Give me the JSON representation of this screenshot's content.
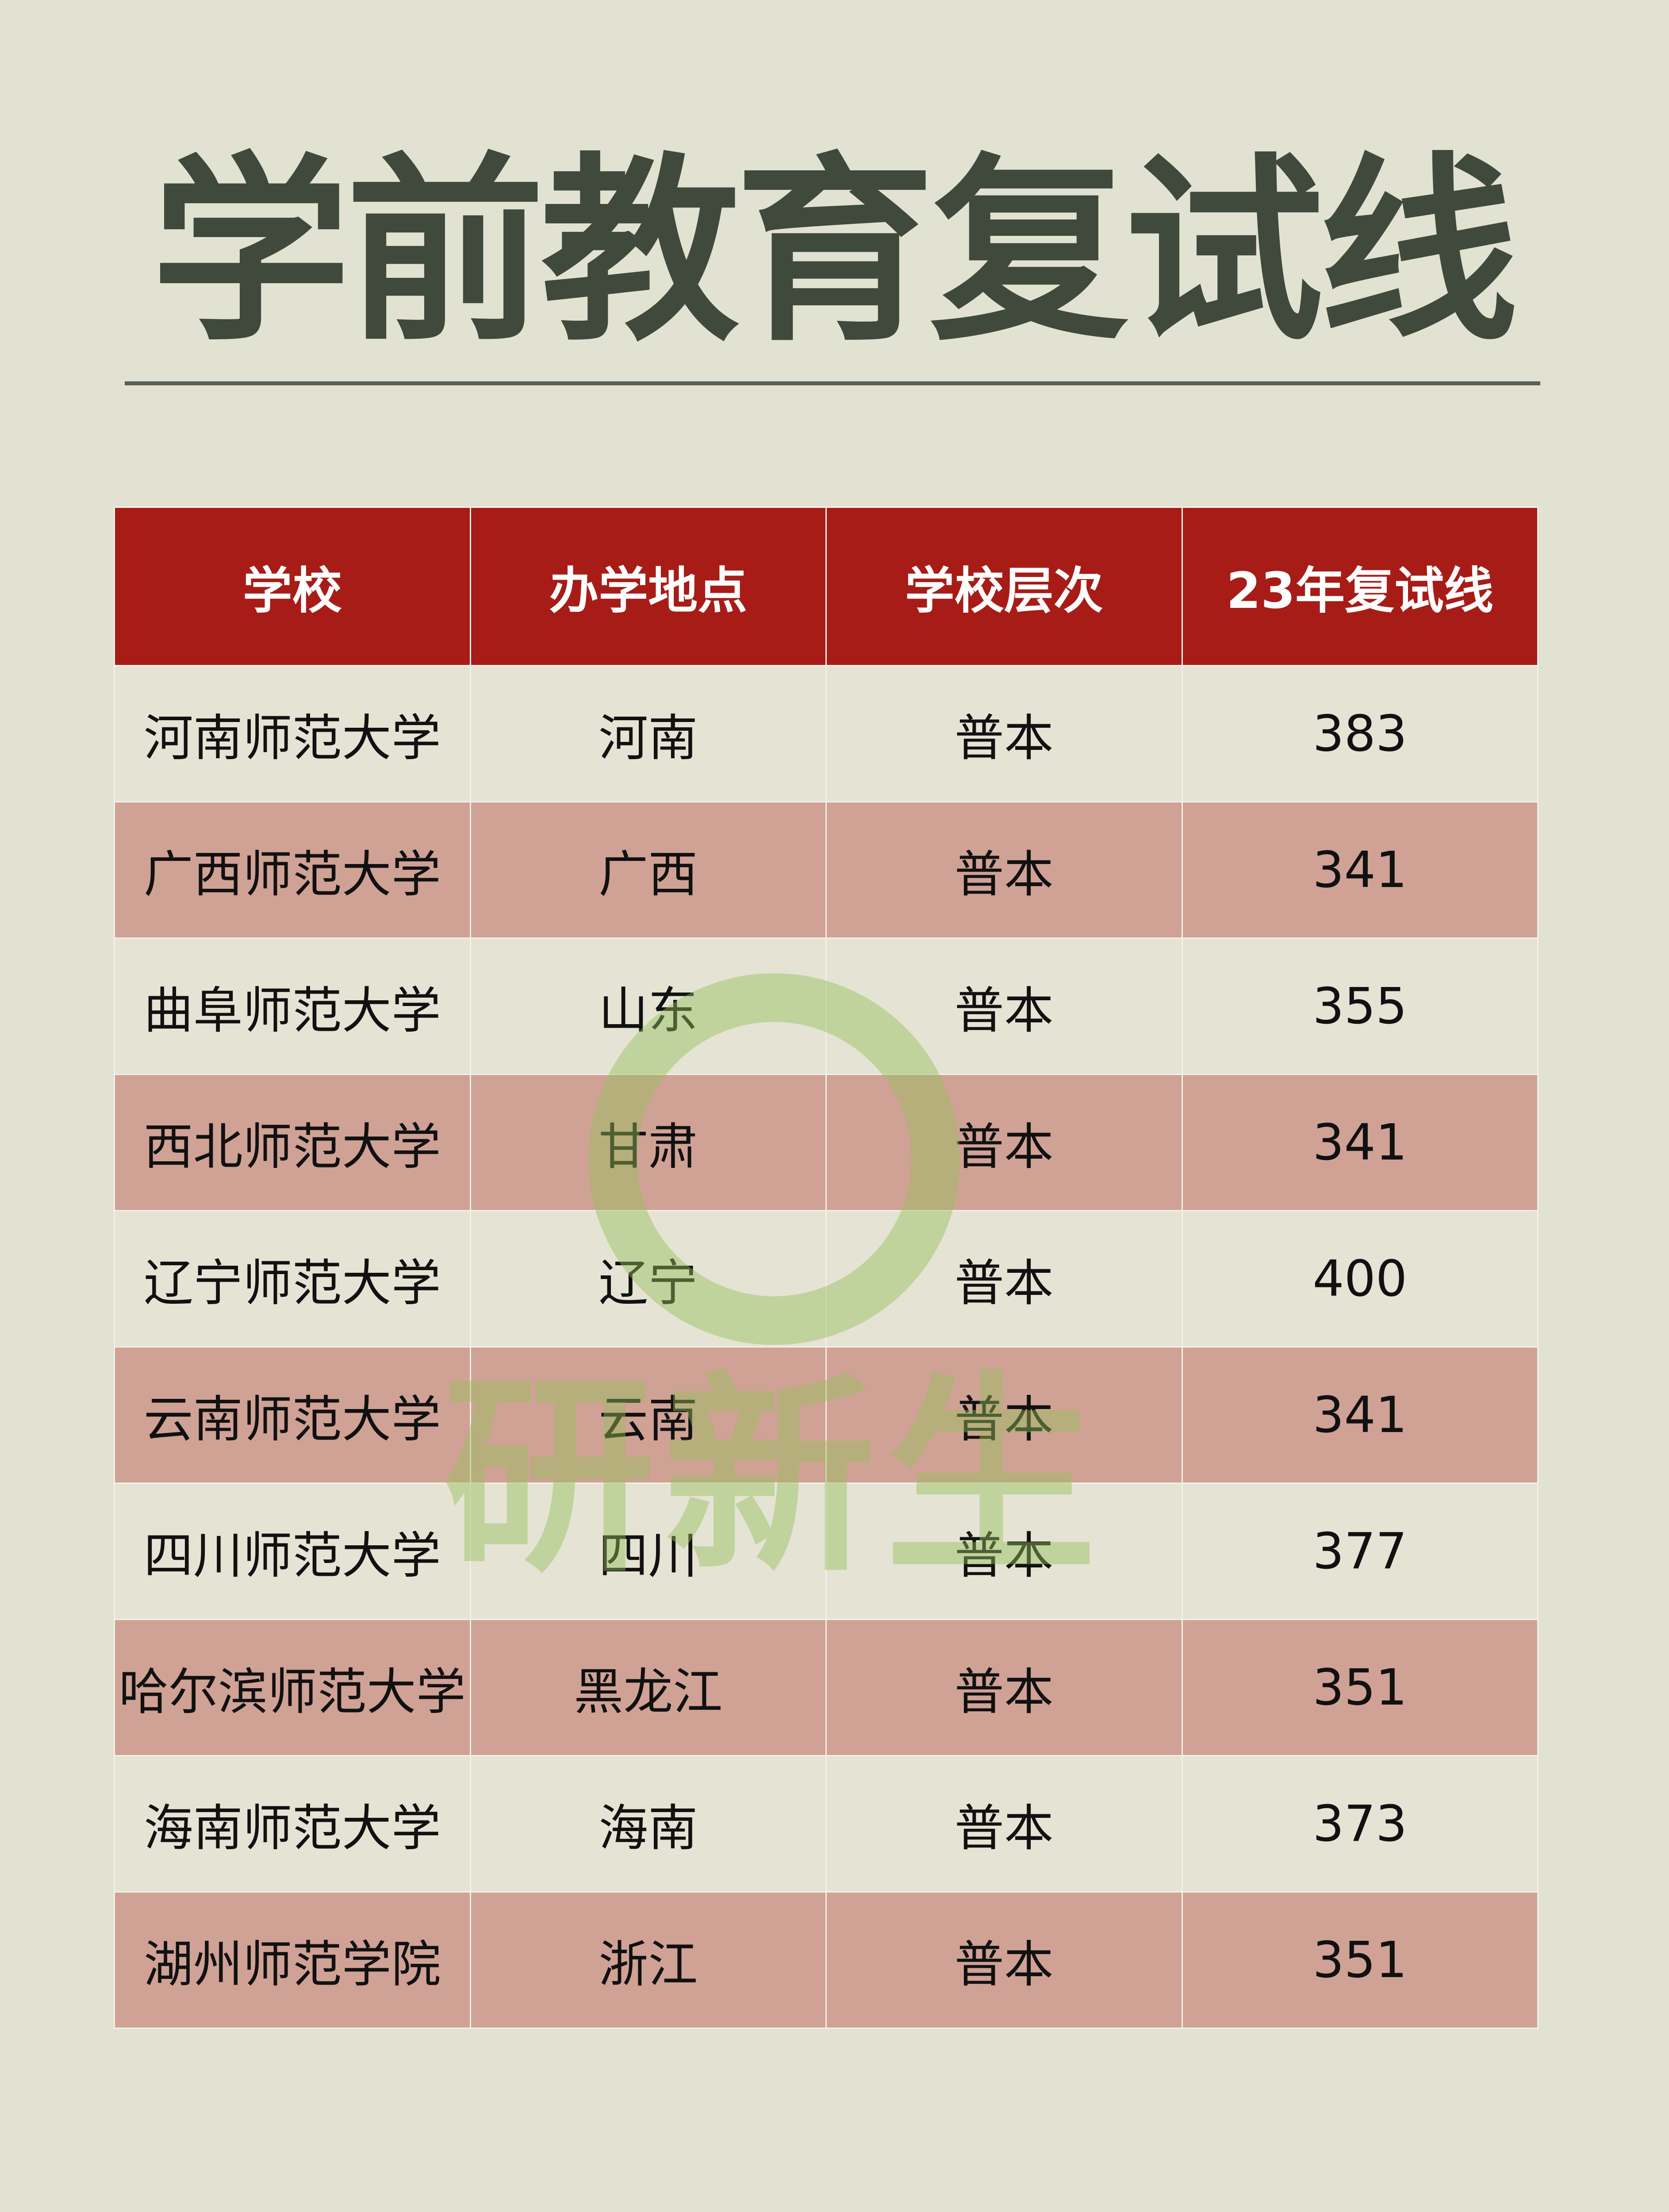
{
  "title": "学前教育复试线",
  "table": {
    "headers": [
      "学校",
      "办学地点",
      "学校层次",
      "23年复试线"
    ],
    "rows": [
      [
        "河南师范大学",
        "河南",
        "普本",
        "383"
      ],
      [
        "广西师范大学",
        "广西",
        "普本",
        "341"
      ],
      [
        "曲阜师范大学",
        "山东",
        "普本",
        "355"
      ],
      [
        "西北师范大学",
        "甘肃",
        "普本",
        "341"
      ],
      [
        "辽宁师范大学",
        "辽宁",
        "普本",
        "400"
      ],
      [
        "云南师范大学",
        "云南",
        "普本",
        "341"
      ],
      [
        "四川师范大学",
        "四川",
        "普本",
        "377"
      ],
      [
        "哈尔滨师范大学",
        "黑龙江",
        "普本",
        "351"
      ],
      [
        "海南师范大学",
        "海南",
        "普本",
        "373"
      ],
      [
        "湖州师范学院",
        "浙江",
        "普本",
        "351"
      ]
    ]
  },
  "watermark": "研新生",
  "colors": {
    "header": "#a81c18",
    "row_alt": "#d0a195",
    "row": "#e4e3d4",
    "title": "#3f4a3c"
  }
}
